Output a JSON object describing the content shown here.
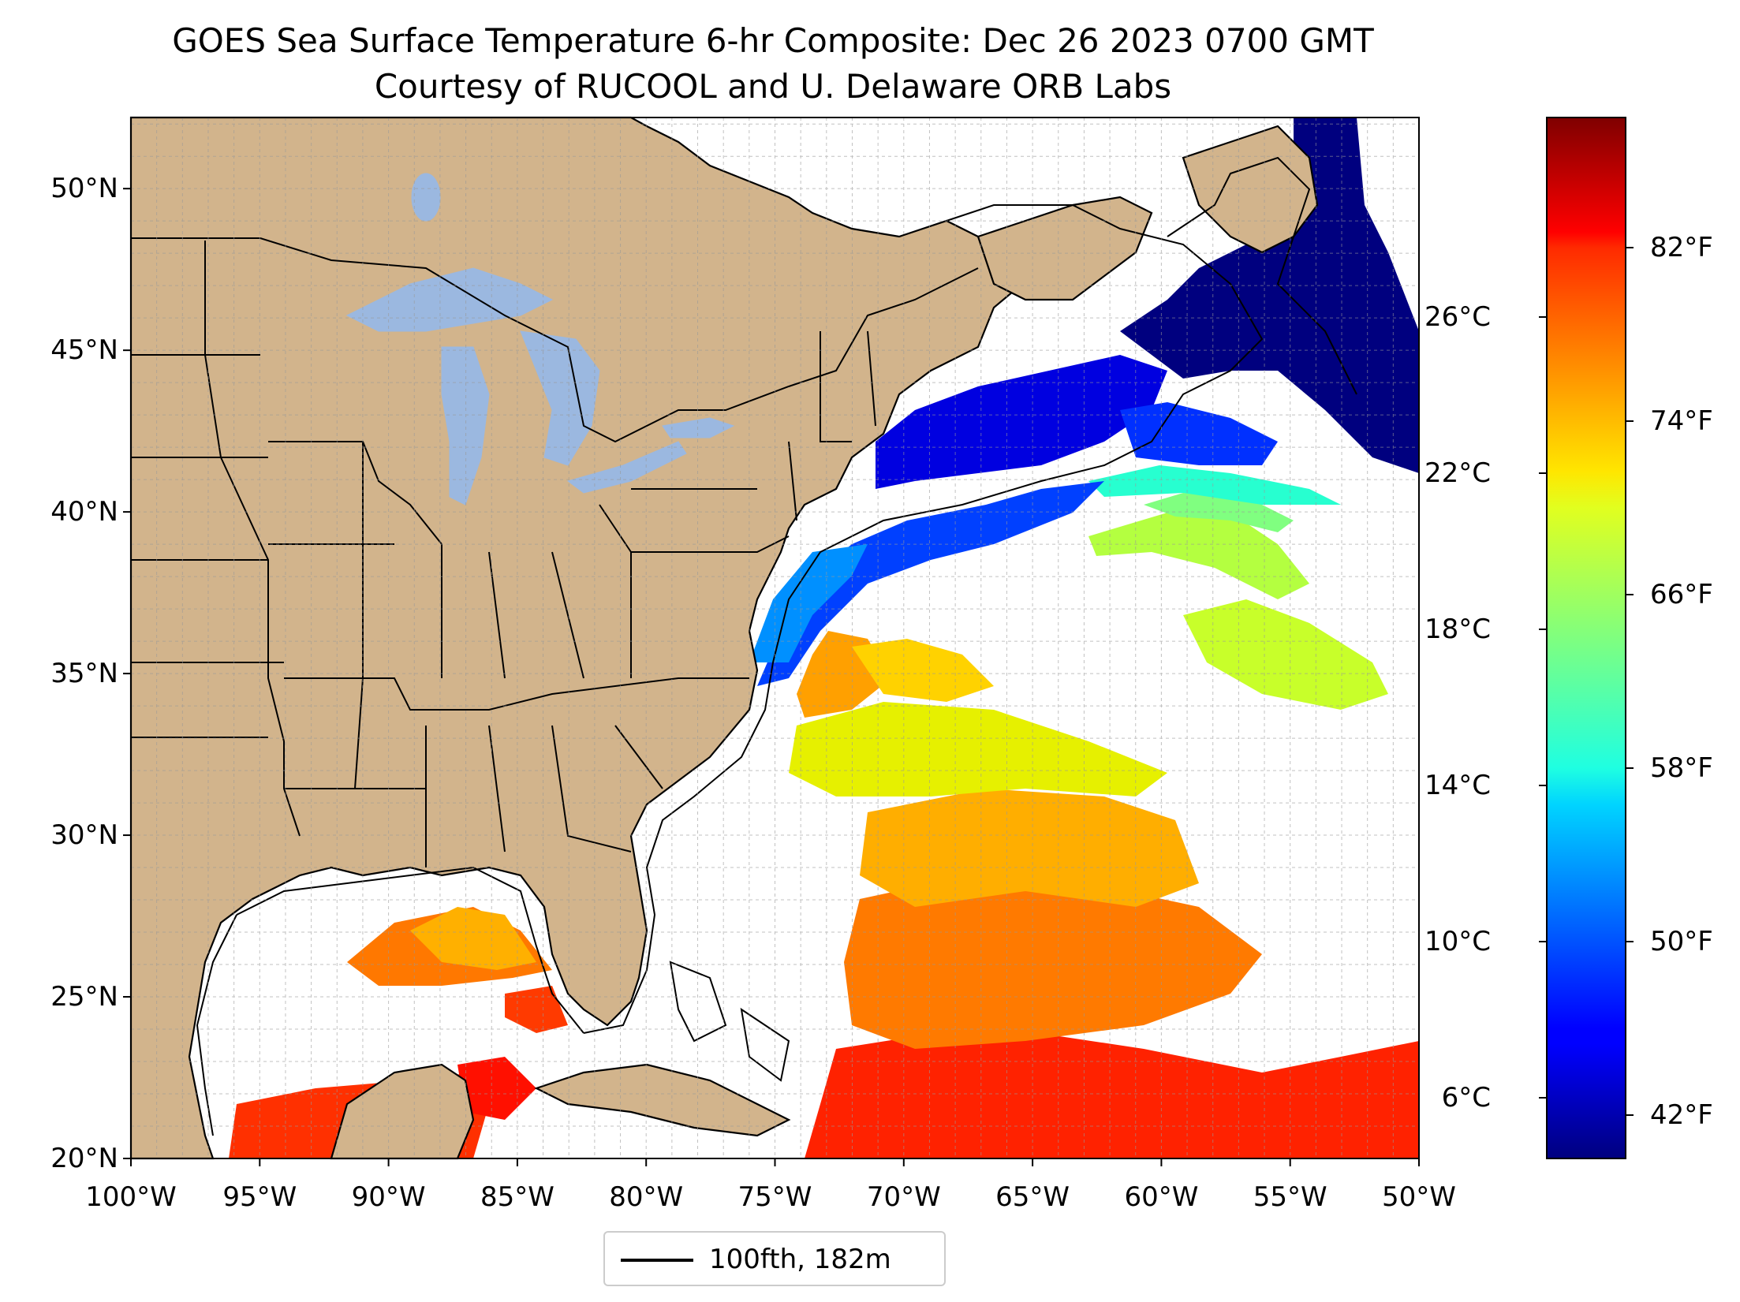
{
  "title": {
    "line1": "GOES Sea Surface Temperature 6-hr Composite: Dec 26 2023 0700 GMT",
    "line2": "Courtesy of RUCOOL and U. Delaware ORB Labs"
  },
  "map": {
    "extent": {
      "lon_min": -100,
      "lon_max": -50,
      "lat_min": 20,
      "lat_max": 52.2
    },
    "lat_ticks": [
      {
        "lat": 20,
        "label": "20°N"
      },
      {
        "lat": 25,
        "label": "25°N"
      },
      {
        "lat": 30,
        "label": "30°N"
      },
      {
        "lat": 35,
        "label": "35°N"
      },
      {
        "lat": 40,
        "label": "40°N"
      },
      {
        "lat": 45,
        "label": "45°N"
      },
      {
        "lat": 50,
        "label": "50°N"
      }
    ],
    "lon_ticks": [
      {
        "lon": -100,
        "label": "100°W"
      },
      {
        "lon": -95,
        "label": "95°W"
      },
      {
        "lon": -90,
        "label": "90°W"
      },
      {
        "lon": -85,
        "label": "85°W"
      },
      {
        "lon": -80,
        "label": "80°W"
      },
      {
        "lon": -75,
        "label": "75°W"
      },
      {
        "lon": -70,
        "label": "70°W"
      },
      {
        "lon": -65,
        "label": "65°W"
      },
      {
        "lon": -60,
        "label": "60°W"
      },
      {
        "lon": -55,
        "label": "55°W"
      },
      {
        "lon": -50,
        "label": "50°W"
      }
    ],
    "land_color": "#d2b48c",
    "lake_color": "#9bb8e0",
    "gridlines": true
  },
  "colorbar": {
    "colormap": "jet",
    "celsius_ticks": [
      {
        "value": 6,
        "label": "6°C"
      },
      {
        "value": 10,
        "label": "10°C"
      },
      {
        "value": 14,
        "label": "14°C"
      },
      {
        "value": 18,
        "label": "18°C"
      },
      {
        "value": 22,
        "label": "22°C"
      },
      {
        "value": 26,
        "label": "26°C"
      }
    ],
    "fahrenheit_ticks": [
      {
        "value": 42,
        "label": "42°F"
      },
      {
        "value": 50,
        "label": "50°F"
      },
      {
        "value": 58,
        "label": "58°F"
      },
      {
        "value": 66,
        "label": "66°F"
      },
      {
        "value": 74,
        "label": "74°F"
      },
      {
        "value": 82,
        "label": "82°F"
      }
    ]
  },
  "legend": {
    "label": "100fth, 182m"
  }
}
